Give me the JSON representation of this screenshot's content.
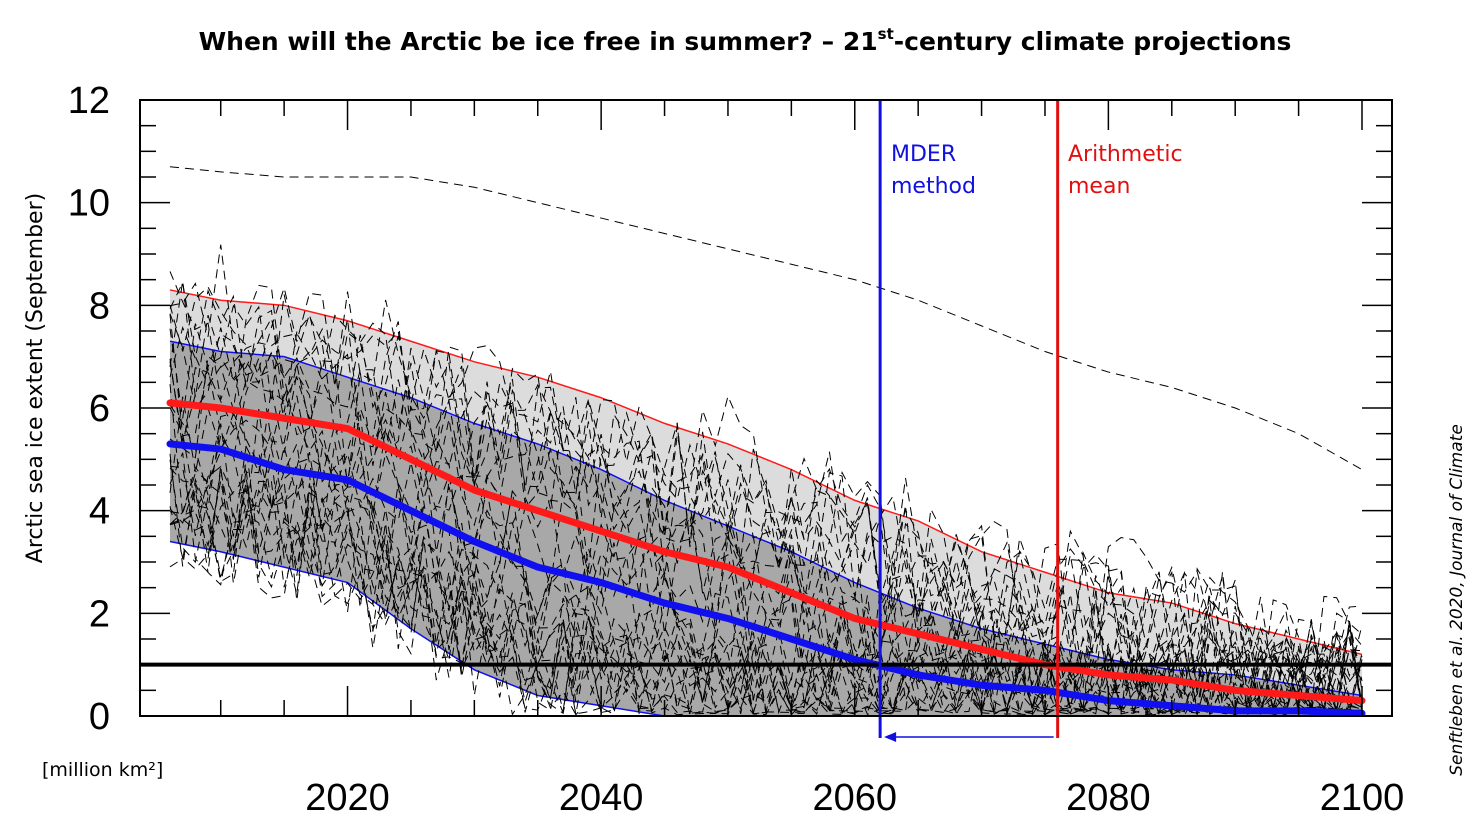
{
  "chart_data": {
    "type": "line",
    "title_main": "When will the Arctic be ice free in summer? – 21",
    "title_sup": "st",
    "title_rest": "-century climate projections",
    "ylabel": "Arctic sea ice extent (September)",
    "yunit": "[million km²]",
    "credit_prefix": "Senftleben et al.",
    "credit_suffix": " 2020, Journal of Climate",
    "xlim": [
      2006,
      2100
    ],
    "ylim": [
      0,
      12
    ],
    "x_ticks": [
      2020,
      2040,
      2060,
      2080,
      2100
    ],
    "y_ticks": [
      0,
      2,
      4,
      6,
      8,
      10,
      12
    ],
    "threshold": 1,
    "annotations": {
      "mder": {
        "x": 2062,
        "line1": "MDER",
        "line2": "method",
        "color": "#1010e0"
      },
      "mean": {
        "x": 2076,
        "line1": "Arithmetic",
        "line2": "mean",
        "color": "#e01010"
      }
    },
    "colors": {
      "mean_line": "#ff1a1a",
      "mder_line": "#1010ee",
      "band_outer": "#dcdcdc",
      "band_inner": "#a8a8a8"
    },
    "series": [
      {
        "x": [
          2006,
          2010,
          2015,
          2020,
          2025,
          2030,
          2035,
          2040,
          2045,
          2050,
          2055,
          2060,
          2065,
          2070,
          2075,
          2080,
          2085,
          2090,
          2095,
          2100
        ],
        "values": [
          6.1,
          6.0,
          5.8,
          5.6,
          5.0,
          4.4,
          4.0,
          3.6,
          3.2,
          2.9,
          2.4,
          1.9,
          1.6,
          1.3,
          1.0,
          0.8,
          0.7,
          0.5,
          0.4,
          0.3
        ]
      },
      {
        "x": [
          2006,
          2010,
          2015,
          2020,
          2025,
          2030,
          2035,
          2040,
          2045,
          2050,
          2055,
          2060,
          2065,
          2070,
          2075,
          2080,
          2085,
          2090,
          2095,
          2100
        ],
        "values": [
          5.3,
          5.2,
          4.8,
          4.6,
          4.0,
          3.4,
          2.9,
          2.6,
          2.2,
          1.9,
          1.5,
          1.1,
          0.8,
          0.6,
          0.5,
          0.3,
          0.2,
          0.1,
          0.1,
          0.05
        ]
      }
    ],
    "bands": [
      {
        "x": [
          2006,
          2010,
          2015,
          2020,
          2025,
          2030,
          2035,
          2040,
          2045,
          2050,
          2055,
          2060,
          2065,
          2070,
          2075,
          2080,
          2085,
          2090,
          2095,
          2100
        ],
        "upper": [
          8.3,
          8.1,
          8.0,
          7.7,
          7.3,
          6.9,
          6.6,
          6.2,
          5.7,
          5.3,
          4.8,
          4.2,
          3.8,
          3.2,
          2.8,
          2.4,
          2.2,
          1.8,
          1.5,
          1.2
        ],
        "lower": [
          3.9,
          3.6,
          3.3,
          2.8,
          2.0,
          1.2,
          0.6,
          0.3,
          0.0,
          0.0,
          0,
          0,
          0,
          0,
          0,
          0,
          0,
          0,
          0,
          0
        ]
      },
      {
        "x": [
          2006,
          2010,
          2015,
          2020,
          2025,
          2030,
          2035,
          2040,
          2045,
          2050,
          2055,
          2060,
          2065,
          2070,
          2075,
          2080,
          2085,
          2090,
          2095,
          2100
        ],
        "upper": [
          7.3,
          7.1,
          7.0,
          6.6,
          6.2,
          5.7,
          5.3,
          4.8,
          4.2,
          3.7,
          3.2,
          2.6,
          2.1,
          1.7,
          1.4,
          1.1,
          0.9,
          0.8,
          0.6,
          0.4
        ],
        "lower": [
          3.4,
          3.2,
          2.9,
          2.6,
          1.7,
          0.9,
          0.4,
          0.2,
          0.0,
          0,
          0,
          0,
          0,
          0,
          0,
          0,
          0,
          0,
          0,
          0
        ]
      }
    ],
    "highest_model": {
      "x": [
        2006,
        2010,
        2015,
        2020,
        2025,
        2030,
        2035,
        2040,
        2045,
        2050,
        2055,
        2060,
        2065,
        2070,
        2075,
        2080,
        2085,
        2090,
        2095,
        2100
      ],
      "values": [
        10.7,
        10.6,
        10.5,
        10.5,
        10.5,
        10.3,
        10.0,
        9.7,
        9.4,
        9.1,
        8.8,
        8.5,
        8.1,
        7.6,
        7.1,
        6.7,
        6.4,
        6.0,
        5.5,
        4.8
      ]
    }
  }
}
